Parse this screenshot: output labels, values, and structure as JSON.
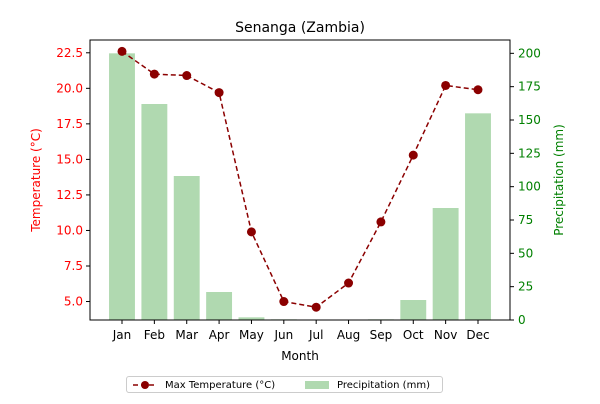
{
  "chart_data": {
    "type": "bar+line",
    "title": "Senanga (Zambia)",
    "xlabel": "Month",
    "categories": [
      "Jan",
      "Feb",
      "Mar",
      "Apr",
      "May",
      "Jun",
      "Jul",
      "Aug",
      "Sep",
      "Oct",
      "Nov",
      "Dec"
    ],
    "left_axis": {
      "label": "Temperature (°C)",
      "color": "#ff0000",
      "ylim": [
        3.7,
        23.4
      ],
      "ticks": [
        5.0,
        7.5,
        10.0,
        12.5,
        15.0,
        17.5,
        20.0,
        22.5
      ],
      "tick_labels": [
        "5.0",
        "7.5",
        "10.0",
        "12.5",
        "15.0",
        "17.5",
        "20.0",
        "22.5"
      ]
    },
    "right_axis": {
      "label": "Precipitation (mm)",
      "color": "#008000",
      "ylim": [
        0,
        210
      ],
      "ticks": [
        0,
        25,
        50,
        75,
        100,
        125,
        150,
        175,
        200
      ],
      "tick_labels": [
        "0",
        "25",
        "50",
        "75",
        "100",
        "125",
        "150",
        "175",
        "200"
      ]
    },
    "series": [
      {
        "name": "Max Temperature (°C)",
        "type": "line",
        "axis": "left",
        "color": "#8b0000",
        "values": [
          22.6,
          21.0,
          20.9,
          19.7,
          9.9,
          5.0,
          4.6,
          6.3,
          10.6,
          15.3,
          20.2,
          19.9
        ]
      },
      {
        "name": "Precipitation (mm)",
        "type": "bar",
        "axis": "right",
        "color": "#b0d9b0",
        "values": [
          200,
          162,
          108,
          21,
          2,
          0.5,
          0.3,
          0,
          0.5,
          15,
          84,
          155
        ]
      }
    ],
    "legend": {
      "placement": "bottom-center",
      "columns": 2
    },
    "grid": false
  }
}
